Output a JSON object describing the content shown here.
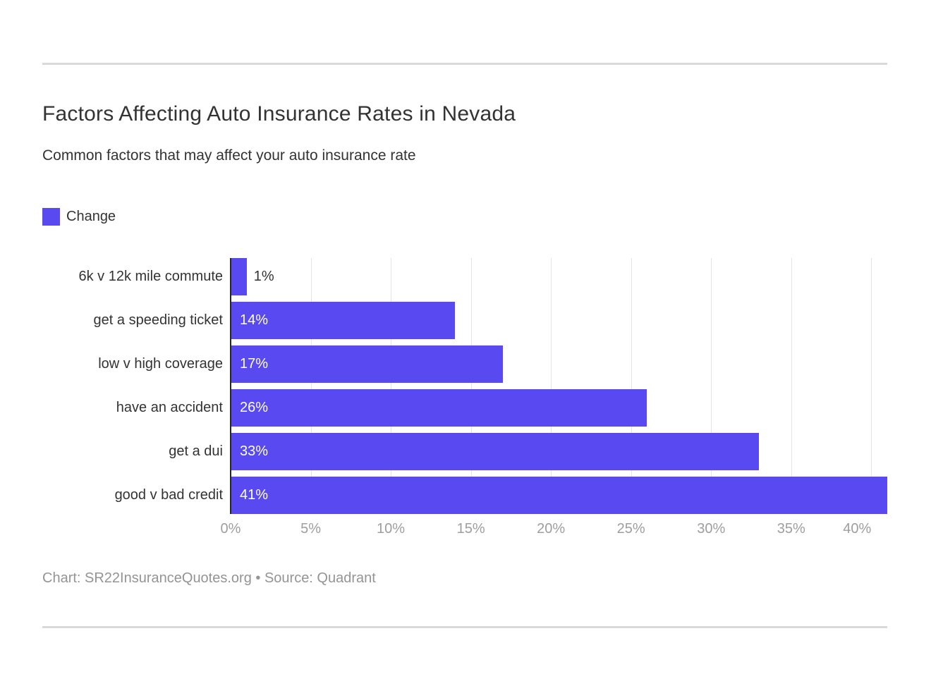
{
  "page": {
    "title": "Factors Affecting Auto Insurance Rates in Nevada",
    "subtitle": "Common factors that may affect your auto insurance rate",
    "footer": "Chart: SR22InsuranceQuotes.org • Source: Quadrant"
  },
  "legend": {
    "label": "Change"
  },
  "chart_data": {
    "type": "bar",
    "orientation": "horizontal",
    "title": "Factors Affecting Auto Insurance Rates in Nevada",
    "subtitle": "Common factors that may affect your auto insurance rate",
    "series_name": "Change",
    "categories": [
      "6k v 12k mile commute",
      "get a speeding ticket",
      "low v high coverage",
      "have an accident",
      "get a dui",
      "good v bad credit"
    ],
    "values": [
      1,
      14,
      17,
      26,
      33,
      41
    ],
    "value_labels": [
      "1%",
      "14%",
      "17%",
      "26%",
      "33%",
      "41%"
    ],
    "xlabel": "",
    "ylabel": "",
    "xlim": [
      0,
      41
    ],
    "x_tick_values": [
      0,
      5,
      10,
      15,
      20,
      25,
      30,
      35,
      40
    ],
    "x_tick_labels": [
      "0%",
      "5%",
      "10%",
      "15%",
      "20%",
      "25%",
      "30%",
      "35%",
      "40%"
    ],
    "grid": "vertical",
    "legend_position": "top-left"
  },
  "colors": {
    "bar": "#5849f0",
    "title": "#333333",
    "subtitle": "#333333",
    "category_label": "#333333",
    "value_label_inside": "#ffffff",
    "value_label_outside": "#333333",
    "tick_label": "#9e9e9e",
    "grid_line": "#e4e4e4",
    "axis_line": "#272727",
    "rule": "#d9d9d9",
    "footer": "#949494",
    "background": "#ffffff"
  }
}
